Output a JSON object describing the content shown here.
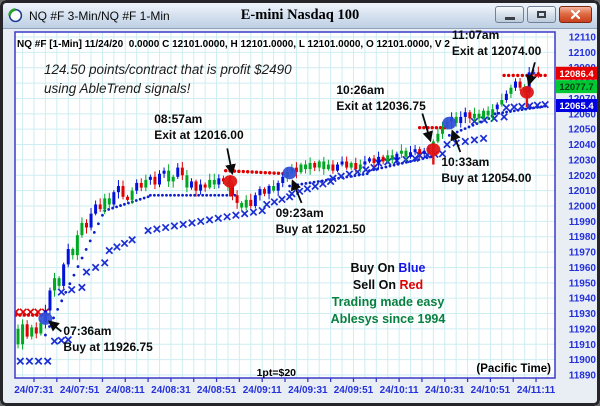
{
  "window": {
    "title": "NQ #F 3-Min/NQ #F 1-Min",
    "center_title": "E-mini Nasdaq 100"
  },
  "chart": {
    "header_line": "NQ #F [1-Min] 11/24/20  0.0000 C 12101.0000, H 12101.0000, L 12101.0000, O 12101.0000, V 2",
    "note_line1": "124.50 points/contract that is profit $2490",
    "note_line2": "using AbleTrend signals!",
    "footer_points": "1pt=$20",
    "footer_timezone": "(Pacific Time)",
    "legend": {
      "buy_prefix": "Buy On",
      "buy_word": "Blue",
      "sell_prefix": "Sell On",
      "sell_word": "Red",
      "tagline1": "Trading made easy",
      "tagline2": "Ablesys since 1994"
    }
  },
  "chart_data": {
    "type": "candlestick",
    "symbol": "NQ #F 1-Min",
    "title": "E-mini Nasdaq 100",
    "y_axis": {
      "min": 11890,
      "max": 12110,
      "step": 10,
      "labels": [
        12110,
        12100,
        12090,
        12080,
        12070,
        12060,
        12050,
        12040,
        12030,
        12020,
        12010,
        12000,
        11990,
        11980,
        11970,
        11960,
        11950,
        11940,
        11930,
        11920,
        11910,
        11900,
        11890
      ]
    },
    "x_axis": {
      "interval_minutes": 20,
      "labels": [
        "24/07:31",
        "24/07:51",
        "24/08:11",
        "24/08:31",
        "24/08:51",
        "24/09:11",
        "24/09:31",
        "24/09:51",
        "24/10:11",
        "24/10:31",
        "24/10:51",
        "24/11:11"
      ]
    },
    "price_tags": [
      {
        "value": "12086.4",
        "bg": "#e60000",
        "fg": "#ffffff"
      },
      {
        "value": "12077.7",
        "bg": "#00c832",
        "fg": "#064016"
      },
      {
        "value": "12065.4",
        "bg": "#0000e0",
        "fg": "#ffffff"
      }
    ],
    "signals": [
      {
        "time": "07:36am",
        "action": "Buy at 11926.75",
        "minute": 5,
        "price": 11926.75,
        "kind": "buy"
      },
      {
        "time": "08:57am",
        "action": "Exit at 12016.00",
        "minute": 86,
        "price": 12016.0,
        "kind": "exit"
      },
      {
        "time": "09:23am",
        "action": "Buy at 12021.50",
        "minute": 112,
        "price": 12021.5,
        "kind": "buy"
      },
      {
        "time": "10:26am",
        "action": "Exit at 12036.75",
        "minute": 175,
        "price": 12036.75,
        "kind": "exit"
      },
      {
        "time": "10:33am",
        "action": "Buy at 12054.00",
        "minute": 182,
        "price": 12054.0,
        "kind": "buy"
      },
      {
        "time": "11:07am",
        "action": "Exit at 12074.00",
        "minute": 216,
        "price": 12074.0,
        "kind": "exit"
      }
    ],
    "price_path": [
      [
        -8,
        11920
      ],
      [
        -6,
        11910
      ],
      [
        -4,
        11923
      ],
      [
        -2,
        11915
      ],
      [
        0,
        11921
      ],
      [
        2,
        11917
      ],
      [
        4,
        11924
      ],
      [
        5,
        11927
      ],
      [
        6,
        11932
      ],
      [
        8,
        11945
      ],
      [
        10,
        11953
      ],
      [
        12,
        11948
      ],
      [
        14,
        11962
      ],
      [
        16,
        11972
      ],
      [
        18,
        11968
      ],
      [
        20,
        11981
      ],
      [
        22,
        11989
      ],
      [
        24,
        11986
      ],
      [
        26,
        11995
      ],
      [
        28,
        12001
      ],
      [
        30,
        11998
      ],
      [
        32,
        12005
      ],
      [
        34,
        12001
      ],
      [
        36,
        12009
      ],
      [
        38,
        12013
      ],
      [
        40,
        12006
      ],
      [
        42,
        12004
      ],
      [
        44,
        12010
      ],
      [
        46,
        12015
      ],
      [
        48,
        12012
      ],
      [
        50,
        12017
      ],
      [
        52,
        12019
      ],
      [
        54,
        12014
      ],
      [
        56,
        12021
      ],
      [
        58,
        12023
      ],
      [
        60,
        12016
      ],
      [
        62,
        12019
      ],
      [
        64,
        12025
      ],
      [
        66,
        12020
      ],
      [
        68,
        12012
      ],
      [
        70,
        12016
      ],
      [
        72,
        12010
      ],
      [
        74,
        12014
      ],
      [
        76,
        12012
      ],
      [
        78,
        12017
      ],
      [
        80,
        12014
      ],
      [
        82,
        12018
      ],
      [
        84,
        12016
      ],
      [
        86,
        12014
      ],
      [
        88,
        12007
      ],
      [
        90,
        12002
      ],
      [
        92,
        11999
      ],
      [
        94,
        12004
      ],
      [
        96,
        12000
      ],
      [
        98,
        12007
      ],
      [
        100,
        12011
      ],
      [
        102,
        12008
      ],
      [
        104,
        12013
      ],
      [
        106,
        12010
      ],
      [
        108,
        12015
      ],
      [
        110,
        12019
      ],
      [
        112,
        12022
      ],
      [
        114,
        12025
      ],
      [
        116,
        12022
      ],
      [
        118,
        12027
      ],
      [
        120,
        12024
      ],
      [
        122,
        12028
      ],
      [
        124,
        12025
      ],
      [
        126,
        12029
      ],
      [
        128,
        12024
      ],
      [
        130,
        12027
      ],
      [
        132,
        12023
      ],
      [
        134,
        12027
      ],
      [
        136,
        12029
      ],
      [
        138,
        12025
      ],
      [
        140,
        12028
      ],
      [
        142,
        12024
      ],
      [
        144,
        12027
      ],
      [
        146,
        12029
      ],
      [
        148,
        12031
      ],
      [
        150,
        12028
      ],
      [
        152,
        12032
      ],
      [
        154,
        12029
      ],
      [
        156,
        12033
      ],
      [
        158,
        12030
      ],
      [
        160,
        12034
      ],
      [
        162,
        12036
      ],
      [
        164,
        12032
      ],
      [
        166,
        12035
      ],
      [
        168,
        12037
      ],
      [
        170,
        12034
      ],
      [
        172,
        12036
      ],
      [
        174,
        12038
      ],
      [
        175,
        12037
      ],
      [
        176,
        12042
      ],
      [
        178,
        12047
      ],
      [
        180,
        12051
      ],
      [
        182,
        12055
      ],
      [
        184,
        12058
      ],
      [
        186,
        12054
      ],
      [
        188,
        12058
      ],
      [
        190,
        12061
      ],
      [
        192,
        12057
      ],
      [
        194,
        12060
      ],
      [
        196,
        12057
      ],
      [
        198,
        12062
      ],
      [
        200,
        12059
      ],
      [
        202,
        12063
      ],
      [
        204,
        12066
      ],
      [
        206,
        12069
      ],
      [
        208,
        12073
      ],
      [
        210,
        12077
      ],
      [
        212,
        12081
      ],
      [
        214,
        12077
      ],
      [
        216,
        12074
      ],
      [
        217,
        12080
      ],
      [
        218,
        12087
      ],
      [
        219,
        12083
      ],
      [
        220,
        12087
      ],
      [
        222,
        12085
      ]
    ],
    "trend_dot_segments": [
      [
        5,
        11916,
        30,
        11994
      ],
      [
        31,
        11997,
        50,
        12006
      ],
      [
        51,
        12007,
        88,
        12007
      ],
      [
        112,
        12013,
        146,
        12021
      ],
      [
        147,
        12023,
        174,
        12032
      ],
      [
        182,
        12046,
        201,
        12058
      ],
      [
        202,
        12060,
        224,
        12065
      ]
    ],
    "x_mark_segments": [
      [
        -6,
        11899,
        6,
        11899
      ],
      [
        9,
        11912,
        15,
        11913
      ],
      [
        12,
        11944,
        21,
        11947
      ],
      [
        23,
        11957,
        31,
        11963
      ],
      [
        33,
        11971,
        43,
        11978
      ],
      [
        50,
        11984,
        100,
        11997
      ],
      [
        102,
        12001,
        112,
        12006
      ],
      [
        113,
        12008,
        130,
        12016
      ],
      [
        131,
        12018,
        149,
        12025
      ],
      [
        151,
        12028,
        167,
        12031
      ],
      [
        169,
        12033,
        179,
        12034
      ],
      [
        181,
        12040,
        197,
        12044
      ],
      [
        193,
        12055,
        206,
        12058
      ],
      [
        207,
        12064,
        224,
        12066
      ]
    ],
    "red_dot_segments": [
      [
        -8,
        11929,
        5,
        11929
      ],
      [
        84,
        12023,
        111,
        12021
      ],
      [
        169,
        12051,
        180,
        12051
      ],
      [
        206,
        12085,
        224,
        12085
      ]
    ],
    "red_x_segments": [
      [
        -8,
        11931,
        5,
        11931
      ]
    ]
  }
}
